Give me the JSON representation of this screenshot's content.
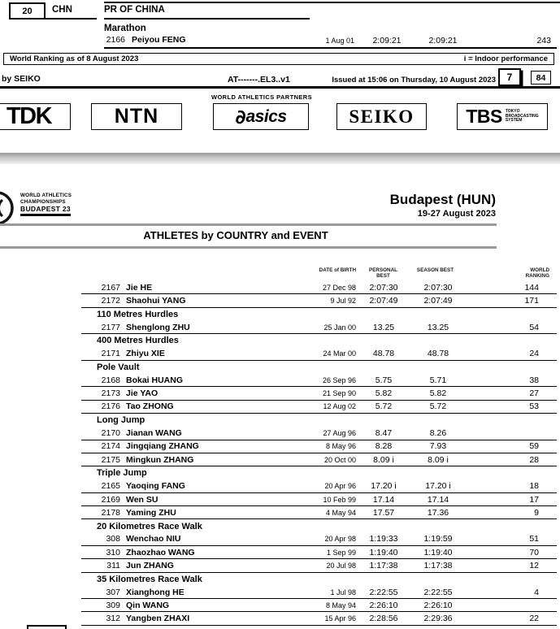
{
  "prev_page": {
    "country_rank": "20",
    "country_code": "CHN",
    "country_name": "PR OF CHINA",
    "event_header": "Marathon",
    "athlete": {
      "bib": "2166",
      "name": "Peiyou FENG",
      "dob": "1 Aug 01",
      "pb": "2:09:21",
      "sb": "2:09:21",
      "wr": "243"
    },
    "world_ranking_note": "World Ranking as of 8 August 2023",
    "indoor_note": "i = Indoor performance",
    "timing_credit": "by SEIKO",
    "doc_code": "AT-------.EL3..v1",
    "issued_line": "Issued at 15:06 on Thursday, 10 August 2023",
    "page_number": "7",
    "pages_total": "84"
  },
  "partners": {
    "heading": "WORLD ATHLETICS PARTNERS",
    "tdk": "TDK",
    "ntn": "NTN",
    "asics_mark": "∂",
    "asics": "asics",
    "seiko": "SEIKO",
    "tbs": "TBS",
    "tbs_lines": [
      "TOKYO",
      "BROADCASTING",
      "SYSTEM"
    ]
  },
  "page": {
    "event_logo": {
      "line1": "WORLD ATHLETICS",
      "line2": "CHAMPIONSHIPS",
      "line3": "BUDAPEST 23"
    },
    "host": "Budapest (HUN)",
    "dates": "19-27 August 2023",
    "doc_title": "ATHLETES by COUNTRY and EVENT"
  },
  "table": {
    "headers": {
      "dob": "DATE of BIRTH",
      "pb1": "PERSONAL",
      "pb2": "BEST",
      "sb": "SEASON BEST",
      "wr1": "WORLD",
      "wr2": "RANKING"
    },
    "rows": [
      {
        "type": "athlete",
        "bib": "2167",
        "name": "Jie HE",
        "dob": "27 Dec 98",
        "pb": "2:07:30",
        "sb": "2:07:30",
        "wr": "144"
      },
      {
        "type": "athlete",
        "bib": "2172",
        "name": "Shaohui YANG",
        "dob": "9 Jul 92",
        "pb": "2:07:49",
        "sb": "2:07:49",
        "wr": "171"
      },
      {
        "type": "section",
        "label": "110 Metres Hurdles"
      },
      {
        "type": "athlete",
        "bib": "2177",
        "name": "Shenglong ZHU",
        "dob": "25 Jan 00",
        "pb": "13.25",
        "sb": "13.25",
        "wr": "54"
      },
      {
        "type": "section",
        "label": "400 Metres Hurdles"
      },
      {
        "type": "athlete",
        "bib": "2171",
        "name": "Zhiyu XIE",
        "dob": "24 Mar 00",
        "pb": "48.78",
        "sb": "48.78",
        "wr": "24"
      },
      {
        "type": "section",
        "label": "Pole Vault"
      },
      {
        "type": "athlete",
        "bib": "2168",
        "name": "Bokai HUANG",
        "dob": "26 Sep 96",
        "pb": "5.75",
        "sb": "5.71",
        "wr": "38"
      },
      {
        "type": "athlete",
        "bib": "2173",
        "name": "Jie YAO",
        "dob": "21 Sep 90",
        "pb": "5.82",
        "sb": "5.82",
        "wr": "27"
      },
      {
        "type": "athlete",
        "bib": "2176",
        "name": "Tao ZHONG",
        "dob": "12 Aug 02",
        "pb": "5.72",
        "sb": "5.72",
        "wr": "53"
      },
      {
        "type": "section",
        "label": "Long Jump"
      },
      {
        "type": "athlete",
        "bib": "2170",
        "name": "Jianan WANG",
        "dob": "27 Aug 96",
        "pb": "8.47",
        "sb": "8.26",
        "wr": ""
      },
      {
        "type": "athlete",
        "bib": "2174",
        "name": "Jingqiang ZHANG",
        "dob": "8 May 96",
        "pb": "8.28",
        "sb": "7.93",
        "wr": "59"
      },
      {
        "type": "athlete",
        "bib": "2175",
        "name": "Mingkun ZHANG",
        "dob": "20 Oct 00",
        "pb": "8.09 i",
        "sb": "8.09 i",
        "wr": "28"
      },
      {
        "type": "section",
        "label": "Triple Jump"
      },
      {
        "type": "athlete",
        "bib": "2165",
        "name": "Yaoqing FANG",
        "dob": "20 Apr 96",
        "pb": "17.20 i",
        "sb": "17.20 i",
        "wr": "18"
      },
      {
        "type": "athlete",
        "bib": "2169",
        "name": "Wen SU",
        "dob": "10 Feb 99",
        "pb": "17.14",
        "sb": "17.14",
        "wr": "17"
      },
      {
        "type": "athlete",
        "bib": "2178",
        "name": "Yaming ZHU",
        "dob": "4 May 94",
        "pb": "17.57",
        "sb": "17.36",
        "wr": "9"
      },
      {
        "type": "section",
        "label": "20 Kilometres Race Walk"
      },
      {
        "type": "athlete",
        "bib": "308",
        "name": "Wenchao NIU",
        "dob": "20 Apr 98",
        "pb": "1:19:33",
        "sb": "1:19:59",
        "wr": "51"
      },
      {
        "type": "athlete",
        "bib": "310",
        "name": "Zhaozhao WANG",
        "dob": "1 Sep 99",
        "pb": "1:19:40",
        "sb": "1:19:40",
        "wr": "70"
      },
      {
        "type": "athlete",
        "bib": "311",
        "name": "Jun ZHANG",
        "dob": "20 Jul 98",
        "pb": "1:17:38",
        "sb": "1:17:38",
        "wr": "12"
      },
      {
        "type": "section",
        "label": "35 Kilometres Race Walk"
      },
      {
        "type": "athlete",
        "bib": "307",
        "name": "Xianghong HE",
        "dob": "1 Jul 98",
        "pb": "2:22:55",
        "sb": "2:22:55",
        "wr": "4"
      },
      {
        "type": "athlete",
        "bib": "309",
        "name": "Qin WANG",
        "dob": "8 May 94",
        "pb": "2:26:10",
        "sb": "2:26:10",
        "wr": ""
      },
      {
        "type": "athlete",
        "bib": "312",
        "name": "Yangben ZHAXI",
        "dob": "15 Apr 96",
        "pb": "2:28:56",
        "sb": "2:29:36",
        "wr": "22"
      }
    ]
  }
}
